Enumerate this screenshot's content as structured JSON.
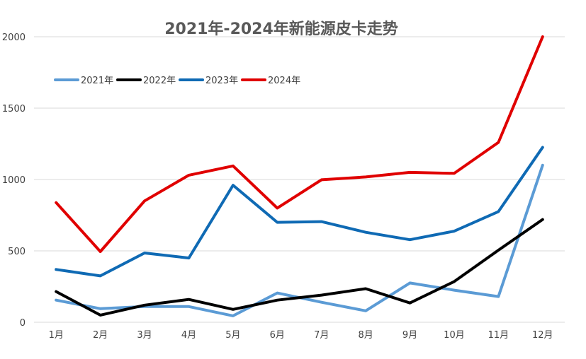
{
  "chart_data": {
    "type": "line",
    "title": "2021年-2024年新能源皮卡走势",
    "categories": [
      "1月",
      "2月",
      "3月",
      "4月",
      "5月",
      "6月",
      "7月",
      "8月",
      "9月",
      "10月",
      "11月",
      "12月"
    ],
    "ylim": [
      0,
      2000
    ],
    "yticks": [
      0,
      500,
      1000,
      1500,
      2000
    ],
    "grid": true,
    "legend_position": "top-left",
    "series": [
      {
        "name": "2021年",
        "color": "#5b9bd5",
        "values": [
          155,
          95,
          110,
          110,
          45,
          205,
          140,
          80,
          275,
          225,
          180,
          1100
        ]
      },
      {
        "name": "2022年",
        "color": "#000000",
        "values": [
          215,
          50,
          120,
          160,
          90,
          155,
          190,
          235,
          135,
          285,
          505,
          720
        ]
      },
      {
        "name": "2023年",
        "color": "#0f6ab4",
        "values": [
          370,
          325,
          485,
          450,
          960,
          700,
          705,
          630,
          578,
          638,
          775,
          1225
        ]
      },
      {
        "name": "2024年",
        "color": "#e00000",
        "values": [
          838,
          495,
          850,
          1030,
          1095,
          800,
          998,
          1018,
          1050,
          1043,
          1260,
          2000
        ]
      }
    ]
  }
}
